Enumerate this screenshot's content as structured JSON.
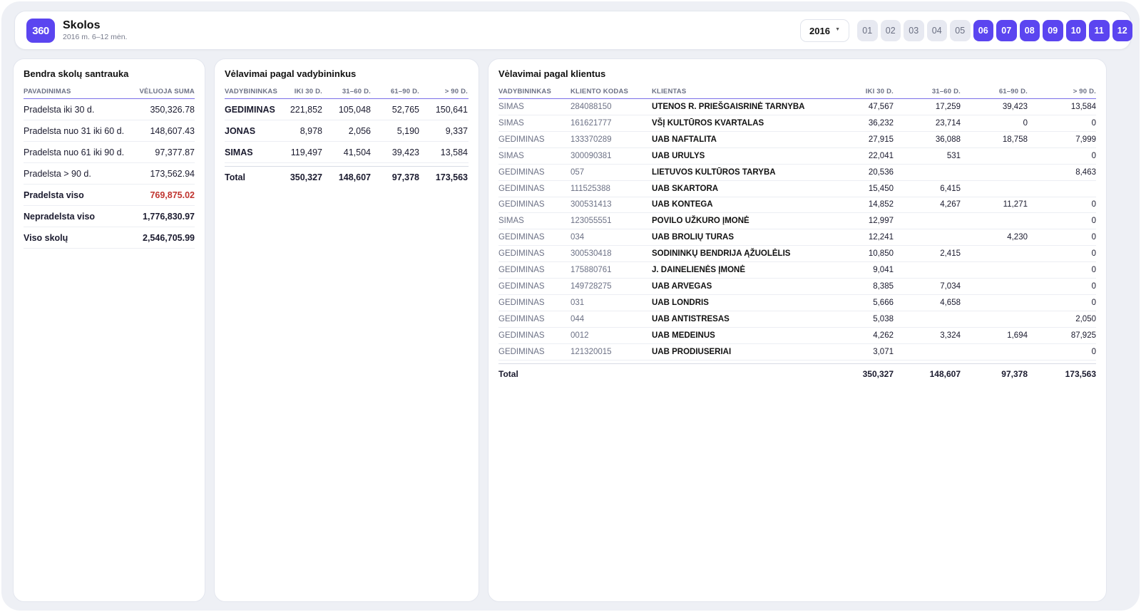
{
  "header": {
    "logo": "360",
    "title": "Skolos",
    "subtitle": "2016 m. 6–12 mėn.",
    "year": "2016",
    "months": [
      {
        "label": "01",
        "active": false
      },
      {
        "label": "02",
        "active": false
      },
      {
        "label": "03",
        "active": false
      },
      {
        "label": "04",
        "active": false
      },
      {
        "label": "05",
        "active": false
      },
      {
        "label": "06",
        "active": true
      },
      {
        "label": "07",
        "active": true
      },
      {
        "label": "08",
        "active": true
      },
      {
        "label": "09",
        "active": true
      },
      {
        "label": "10",
        "active": true
      },
      {
        "label": "11",
        "active": true
      },
      {
        "label": "12",
        "active": true
      }
    ]
  },
  "summary": {
    "title": "Bendra skolų santrauka",
    "col_name": "PAVADINIMAS",
    "col_value": "VĖLUOJA SUMA",
    "rows": [
      {
        "name": "Pradelsta iki 30 d.",
        "value": "350,326.78",
        "bold": false,
        "red": false
      },
      {
        "name": "Pradelsta nuo 31 iki 60 d.",
        "value": "148,607.43",
        "bold": false,
        "red": false
      },
      {
        "name": "Pradelsta nuo 61 iki 90 d.",
        "value": "97,377.87",
        "bold": false,
        "red": false
      },
      {
        "name": "Pradelsta > 90 d.",
        "value": "173,562.94",
        "bold": false,
        "red": false
      },
      {
        "name": "Pradelsta viso",
        "value": "769,875.02",
        "bold": true,
        "red": true
      },
      {
        "name": "Nepradelsta viso",
        "value": "1,776,830.97",
        "bold": true,
        "red": false
      },
      {
        "name": "Viso skolų",
        "value": "2,546,705.99",
        "bold": true,
        "red": false
      }
    ]
  },
  "managers": {
    "title": "Vėlavimai pagal vadybininkus",
    "columns": [
      "VADYBININKAS",
      "IKI 30 D.",
      "31–60 D.",
      "61–90 D.",
      "> 90 D."
    ],
    "rows": [
      [
        "GEDIMINAS",
        "221,852",
        "105,048",
        "52,765",
        "150,641"
      ],
      [
        "JONAS",
        "8,978",
        "2,056",
        "5,190",
        "9,337"
      ],
      [
        "SIMAS",
        "119,497",
        "41,504",
        "39,423",
        "13,584"
      ]
    ],
    "total": [
      "Total",
      "350,327",
      "148,607",
      "97,378",
      "173,563"
    ]
  },
  "clients": {
    "title": "Vėlavimai pagal klientus",
    "columns": [
      "VADYBININKAS",
      "KLIENTO KODAS",
      "KLIENTAS",
      "IKI 30 D.",
      "31–60 D.",
      "61–90 D.",
      "> 90 D."
    ],
    "rows": [
      [
        "SIMAS",
        "284088150",
        "UTENOS R. PRIEŠGAISRINĖ TARNYBA",
        "47,567",
        "17,259",
        "39,423",
        "13,584"
      ],
      [
        "SIMAS",
        "161621777",
        "VŠĮ KULTŪROS KVARTALAS",
        "36,232",
        "23,714",
        "0",
        "0"
      ],
      [
        "GEDIMINAS",
        "133370289",
        "UAB NAFTALITA",
        "27,915",
        "36,088",
        "18,758",
        "7,999"
      ],
      [
        "SIMAS",
        "300090381",
        "UAB URULYS",
        "22,041",
        "531",
        "",
        "0"
      ],
      [
        "GEDIMINAS",
        "057",
        "LIETUVOS KULTŪROS TARYBA",
        "20,536",
        "",
        "",
        "8,463"
      ],
      [
        "GEDIMINAS",
        "111525388",
        "UAB SKARTORA",
        "15,450",
        "6,415",
        "",
        ""
      ],
      [
        "GEDIMINAS",
        "300531413",
        "UAB KONTEGA",
        "14,852",
        "4,267",
        "11,271",
        "0"
      ],
      [
        "SIMAS",
        "123055551",
        "POVILO UŽKURO ĮMONĖ",
        "12,997",
        "",
        "",
        "0"
      ],
      [
        "GEDIMINAS",
        "034",
        "UAB BROLIŲ TURAS",
        "12,241",
        "",
        "4,230",
        "0"
      ],
      [
        "GEDIMINAS",
        "300530418",
        "SODININKŲ BENDRIJA ĄŽUOLĖLIS",
        "10,850",
        "2,415",
        "",
        "0"
      ],
      [
        "GEDIMINAS",
        "175880761",
        "J. DAINELIENĖS ĮMONĖ",
        "9,041",
        "",
        "",
        "0"
      ],
      [
        "GEDIMINAS",
        "149728275",
        "UAB ARVEGAS",
        "8,385",
        "7,034",
        "",
        "0"
      ],
      [
        "GEDIMINAS",
        "031",
        "UAB LONDRIS",
        "5,666",
        "4,658",
        "",
        "0"
      ],
      [
        "GEDIMINAS",
        "044",
        "UAB ANTISTRESAS",
        "5,038",
        "",
        "",
        "2,050"
      ],
      [
        "GEDIMINAS",
        "0012",
        "UAB MEDEINUS",
        "4,262",
        "3,324",
        "1,694",
        "87,925"
      ],
      [
        "GEDIMINAS",
        "121320015",
        "UAB PRODIUSERIAI",
        "3,071",
        "",
        "",
        "0"
      ]
    ],
    "total": [
      "Total",
      "350,327",
      "148,607",
      "97,378",
      "173,563"
    ]
  }
}
